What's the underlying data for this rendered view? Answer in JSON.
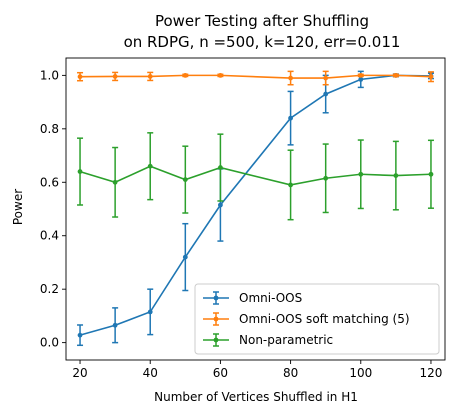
{
  "chart_data": {
    "type": "line",
    "title_line1": "Power Testing after Shuffling",
    "title_line2": "on RDPG, n =500, k=120, err=0.011",
    "xlabel": "Number of Vertices Shuffled in H1",
    "ylabel": "Power",
    "xlim": [
      16,
      124
    ],
    "ylim": [
      -0.065,
      1.065
    ],
    "xticks": [
      20,
      40,
      60,
      80,
      100,
      120
    ],
    "yticks": [
      0.0,
      0.2,
      0.4,
      0.6,
      0.8,
      1.0
    ],
    "grid": false,
    "legend_position": "lower right",
    "x": [
      20,
      30,
      40,
      50,
      60,
      80,
      90,
      100,
      110,
      120
    ],
    "series": [
      {
        "name": "Omni-OOS",
        "color": "#1f77b4",
        "values": [
          0.028,
          0.065,
          0.115,
          0.32,
          0.515,
          0.84,
          0.93,
          0.985,
          1.0,
          0.998
        ],
        "errors": [
          0.038,
          0.065,
          0.085,
          0.125,
          0.135,
          0.1,
          0.07,
          0.03,
          0.005,
          0.01
        ]
      },
      {
        "name": "Omni-OOS soft matching (5)",
        "color": "#ff7f0e",
        "values": [
          0.995,
          0.996,
          0.996,
          1.0,
          1.0,
          0.99,
          0.99,
          1.0,
          1.0,
          0.995
        ],
        "errors": [
          0.015,
          0.015,
          0.015,
          0.004,
          0.004,
          0.025,
          0.025,
          0.004,
          0.004,
          0.018
        ]
      },
      {
        "name": "Non-parametric",
        "color": "#2ca02c",
        "values": [
          0.64,
          0.6,
          0.66,
          0.61,
          0.655,
          0.59,
          0.615,
          0.63,
          0.625,
          0.63
        ],
        "errors": [
          0.125,
          0.13,
          0.125,
          0.125,
          0.125,
          0.13,
          0.128,
          0.128,
          0.128,
          0.127
        ]
      }
    ]
  }
}
